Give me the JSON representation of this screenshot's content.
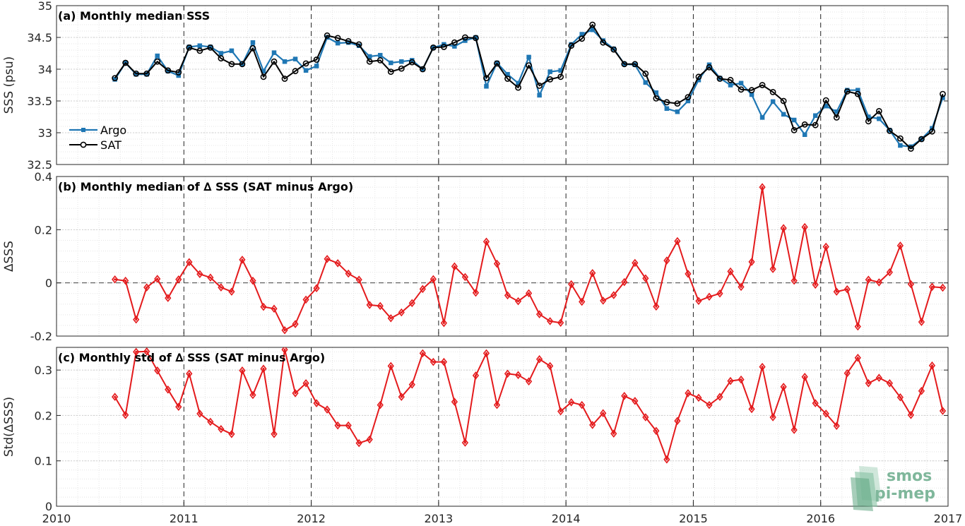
{
  "xaxis": {
    "ticks": [
      2010,
      2011,
      2012,
      2013,
      2014,
      2015,
      2016,
      2017
    ],
    "tick_labels": [
      "2010",
      "2011",
      "2012",
      "2013",
      "2014",
      "2015",
      "2016",
      "2017"
    ],
    "range": [
      2010,
      2017
    ]
  },
  "colors": {
    "argo": "#1f77b4",
    "sat": "#000000",
    "delta": "#e41a1c"
  },
  "watermark": {
    "line1": "smos",
    "line2": "pi-mep",
    "color": "#7fb79b"
  },
  "chart_data": [
    {
      "type": "line",
      "title": "(a) Monthly median SSS",
      "ylabel": "SSS (psu)",
      "ylim": [
        32.5,
        35
      ],
      "yticks": [
        32.5,
        33,
        33.5,
        34,
        34.5,
        35
      ],
      "ytick_labels": [
        "32.5",
        "33",
        "33.5",
        "34",
        "34.5",
        "35"
      ],
      "grid": true,
      "legend_position": "lower-left",
      "series": [
        {
          "name": "Argo",
          "values": [
            33.84,
            34.1,
            33.92,
            33.92,
            34.21,
            33.97,
            33.9,
            34.35,
            34.37,
            34.35,
            34.25,
            34.29,
            34.08,
            34.42,
            33.97,
            34.26,
            34.12,
            34.16,
            33.98,
            34.05,
            34.5,
            34.41,
            34.42,
            34.37,
            34.2,
            34.22,
            34.1,
            34.12,
            34.14,
            34.0,
            34.34,
            34.39,
            34.36,
            34.45,
            34.5,
            33.73,
            34.1,
            33.92,
            33.78,
            34.19,
            33.59,
            33.96,
            33.98,
            34.39,
            34.55,
            34.62,
            34.45,
            34.32,
            34.08,
            34.07,
            33.79,
            33.63,
            33.38,
            33.33,
            33.5,
            33.83,
            34.07,
            33.86,
            33.75,
            33.78,
            33.6,
            33.24,
            33.49,
            33.29,
            33.2,
            32.97,
            33.27,
            33.42,
            33.33,
            33.67,
            33.67,
            33.25,
            33.22,
            33.04,
            32.8,
            32.78,
            32.9,
            33.07,
            33.55
          ]
        },
        {
          "name": "SAT",
          "values": [
            33.86,
            34.1,
            33.93,
            33.93,
            34.12,
            33.98,
            33.95,
            34.34,
            34.29,
            34.34,
            34.17,
            34.08,
            34.08,
            34.33,
            33.88,
            34.12,
            33.85,
            33.97,
            34.09,
            34.15,
            34.53,
            34.49,
            34.44,
            34.39,
            34.12,
            34.14,
            33.96,
            34.01,
            34.11,
            34.0,
            34.34,
            34.35,
            34.42,
            34.5,
            34.49,
            33.86,
            34.09,
            33.85,
            33.71,
            34.06,
            33.74,
            33.84,
            33.88,
            34.37,
            34.48,
            34.7,
            34.42,
            34.31,
            34.08,
            34.08,
            33.93,
            33.54,
            33.48,
            33.46,
            33.56,
            33.88,
            34.03,
            33.85,
            33.83,
            33.68,
            33.67,
            33.75,
            33.64,
            33.5,
            33.04,
            33.13,
            33.12,
            33.51,
            33.24,
            33.65,
            33.61,
            33.18,
            33.34,
            33.03,
            32.91,
            32.75,
            32.9,
            33.02,
            33.61
          ]
        }
      ]
    },
    {
      "type": "line",
      "title": "(b) Monthly median of ∆ SSS (SAT minus Argo)",
      "ylabel": "∆SSS",
      "ylim": [
        -0.2,
        0.4
      ],
      "yticks": [
        -0.2,
        0,
        0.2,
        0.4
      ],
      "ytick_labels": [
        "-0.2",
        "0",
        "0.2",
        "0.4"
      ],
      "reference_line": 0,
      "grid": true,
      "series": [
        {
          "values": [
            0.013,
            0.008,
            -0.138,
            -0.017,
            0.015,
            -0.057,
            0.013,
            0.078,
            0.033,
            0.02,
            -0.017,
            -0.033,
            0.087,
            0.008,
            -0.09,
            -0.097,
            -0.178,
            -0.155,
            -0.063,
            -0.02,
            0.09,
            0.074,
            0.035,
            0.012,
            -0.083,
            -0.087,
            -0.133,
            -0.111,
            -0.076,
            -0.023,
            0.014,
            -0.151,
            0.062,
            0.022,
            -0.037,
            0.155,
            0.072,
            -0.047,
            -0.069,
            -0.039,
            -0.118,
            -0.144,
            -0.15,
            -0.005,
            -0.071,
            0.037,
            -0.067,
            -0.046,
            0.003,
            0.075,
            0.017,
            -0.089,
            0.084,
            0.157,
            0.034,
            -0.068,
            -0.052,
            -0.04,
            0.043,
            -0.015,
            0.079,
            0.36,
            0.052,
            0.206,
            0.008,
            0.21,
            -0.007,
            0.136,
            -0.033,
            -0.024,
            -0.164,
            0.012,
            0.002,
            0.04,
            0.14,
            -0.005,
            -0.147,
            -0.015,
            -0.018
          ]
        }
      ]
    },
    {
      "type": "line",
      "title": "(c) Monthly std of ∆ SSS (SAT minus Argo)",
      "ylabel": "Std(∆SSS)",
      "ylim": [
        0,
        0.35
      ],
      "yticks": [
        0,
        0.1,
        0.2,
        0.3
      ],
      "ytick_labels": [
        "0",
        "0.1",
        "0.2",
        "0.3"
      ],
      "grid": true,
      "series": [
        {
          "values": [
            0.241,
            0.201,
            0.34,
            0.341,
            0.299,
            0.257,
            0.219,
            0.292,
            0.204,
            0.186,
            0.17,
            0.159,
            0.299,
            0.245,
            0.303,
            0.159,
            0.345,
            0.249,
            0.271,
            0.227,
            0.213,
            0.178,
            0.178,
            0.139,
            0.147,
            0.223,
            0.309,
            0.241,
            0.268,
            0.337,
            0.318,
            0.318,
            0.23,
            0.14,
            0.288,
            0.337,
            0.223,
            0.292,
            0.289,
            0.275,
            0.324,
            0.309,
            0.209,
            0.229,
            0.223,
            0.179,
            0.205,
            0.16,
            0.243,
            0.232,
            0.196,
            0.166,
            0.103,
            0.188,
            0.249,
            0.239,
            0.223,
            0.241,
            0.276,
            0.279,
            0.214,
            0.307,
            0.196,
            0.263,
            0.168,
            0.285,
            0.227,
            0.204,
            0.177,
            0.293,
            0.327,
            0.271,
            0.283,
            0.271,
            0.24,
            0.201,
            0.254,
            0.31,
            0.21
          ]
        }
      ]
    }
  ]
}
